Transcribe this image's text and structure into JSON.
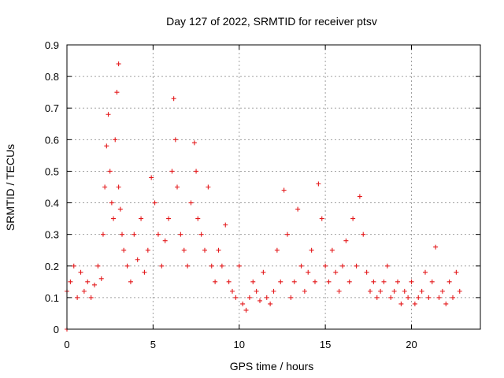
{
  "chart_data": {
    "type": "scatter",
    "title": "Day 127 of 2022, SRMTID for receiver ptsv",
    "xlabel": "GPS time / hours",
    "ylabel": "SRMTID / TECUs",
    "xlim": [
      0,
      24
    ],
    "ylim": [
      0,
      0.9
    ],
    "x_ticks": [
      0,
      5,
      10,
      15,
      20
    ],
    "y_ticks": [
      0,
      0.1,
      0.2,
      0.3,
      0.4,
      0.5,
      0.6,
      0.7,
      0.8,
      0.9
    ],
    "x_tick_labels": [
      "0",
      "5",
      "10",
      "15",
      "20"
    ],
    "y_tick_labels": [
      "0",
      "0.1",
      "0.2",
      "0.3",
      "0.4",
      "0.5",
      "0.6",
      "0.7",
      "0.8",
      "0.9"
    ],
    "grid": true,
    "marker": "+",
    "color": "#e41a1c",
    "series": [
      {
        "name": "ptsv",
        "x": [
          0.0,
          0.0,
          0.2,
          0.4,
          0.6,
          0.8,
          1.0,
          1.2,
          1.4,
          1.6,
          1.8,
          2.0,
          2.1,
          2.2,
          2.3,
          2.4,
          2.5,
          2.6,
          2.7,
          2.8,
          2.9,
          3.0,
          3.0,
          3.1,
          3.2,
          3.3,
          3.5,
          3.7,
          3.9,
          4.1,
          4.3,
          4.5,
          4.7,
          4.9,
          5.1,
          5.3,
          5.5,
          5.7,
          5.9,
          6.1,
          6.2,
          6.3,
          6.4,
          6.6,
          6.8,
          7.0,
          7.2,
          7.4,
          7.5,
          7.6,
          7.8,
          8.0,
          8.2,
          8.4,
          8.6,
          8.8,
          9.0,
          9.2,
          9.4,
          9.6,
          9.8,
          10.0,
          10.2,
          10.4,
          10.6,
          10.8,
          11.0,
          11.2,
          11.4,
          11.6,
          11.8,
          12.0,
          12.2,
          12.4,
          12.6,
          12.8,
          13.0,
          13.2,
          13.4,
          13.6,
          13.8,
          14.0,
          14.2,
          14.4,
          14.6,
          14.8,
          15.0,
          15.2,
          15.4,
          15.6,
          15.8,
          16.0,
          16.2,
          16.4,
          16.6,
          16.8,
          17.0,
          17.2,
          17.4,
          17.6,
          17.8,
          18.0,
          18.2,
          18.4,
          18.6,
          18.8,
          19.0,
          19.2,
          19.4,
          19.6,
          19.8,
          20.0,
          20.2,
          20.4,
          20.6,
          20.8,
          21.0,
          21.2,
          21.4,
          21.6,
          21.8,
          22.0,
          22.2,
          22.4,
          22.6,
          22.8
        ],
        "y": [
          0.0,
          0.12,
          0.15,
          0.2,
          0.1,
          0.18,
          0.12,
          0.15,
          0.1,
          0.14,
          0.2,
          0.16,
          0.3,
          0.45,
          0.58,
          0.68,
          0.5,
          0.4,
          0.35,
          0.6,
          0.75,
          0.84,
          0.45,
          0.38,
          0.3,
          0.25,
          0.2,
          0.15,
          0.3,
          0.22,
          0.35,
          0.18,
          0.25,
          0.48,
          0.4,
          0.3,
          0.2,
          0.28,
          0.35,
          0.5,
          0.73,
          0.6,
          0.45,
          0.3,
          0.25,
          0.2,
          0.4,
          0.59,
          0.5,
          0.35,
          0.3,
          0.25,
          0.45,
          0.2,
          0.15,
          0.25,
          0.2,
          0.33,
          0.15,
          0.12,
          0.1,
          0.2,
          0.08,
          0.06,
          0.1,
          0.15,
          0.12,
          0.09,
          0.18,
          0.1,
          0.08,
          0.12,
          0.25,
          0.15,
          0.44,
          0.3,
          0.1,
          0.15,
          0.38,
          0.2,
          0.12,
          0.18,
          0.25,
          0.15,
          0.46,
          0.35,
          0.2,
          0.15,
          0.25,
          0.18,
          0.12,
          0.2,
          0.28,
          0.15,
          0.35,
          0.2,
          0.42,
          0.3,
          0.18,
          0.12,
          0.15,
          0.1,
          0.12,
          0.15,
          0.2,
          0.1,
          0.12,
          0.15,
          0.08,
          0.12,
          0.1,
          0.15,
          0.08,
          0.1,
          0.12,
          0.18,
          0.1,
          0.15,
          0.26,
          0.1,
          0.12,
          0.08,
          0.15,
          0.1,
          0.18,
          0.12
        ]
      }
    ]
  }
}
